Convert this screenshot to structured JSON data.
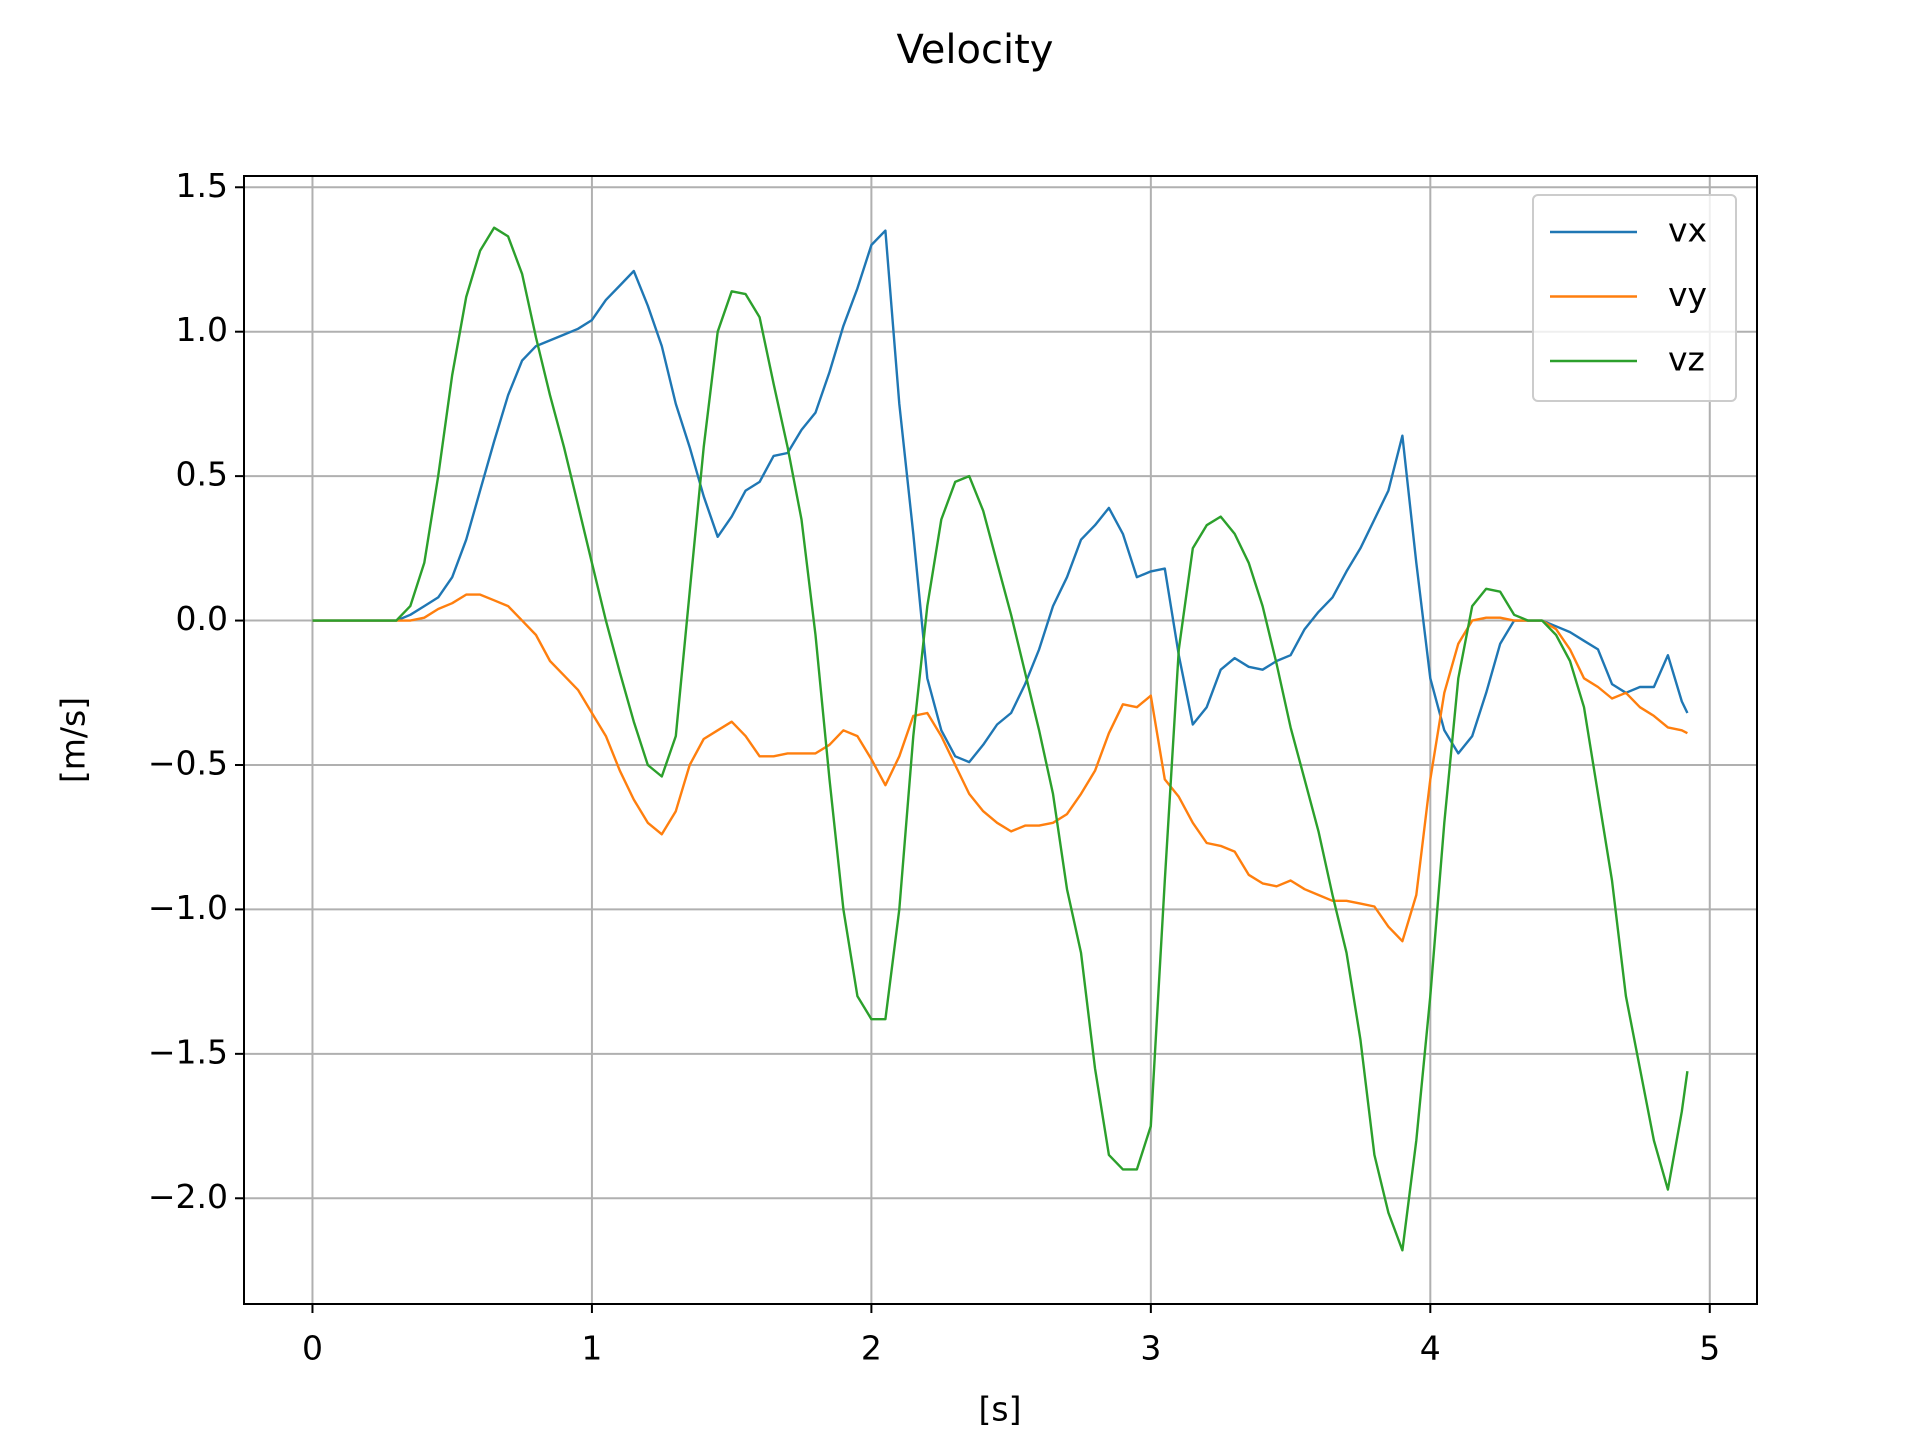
{
  "chart_data": {
    "type": "line",
    "title": "Velocity",
    "x_label": "[s]",
    "y_label": "[m/s]",
    "x": [
      0,
      0.05,
      0.1,
      0.15,
      0.2,
      0.25,
      0.3,
      0.35,
      0.4,
      0.45,
      0.5,
      0.55,
      0.6,
      0.65,
      0.7,
      0.75,
      0.8,
      0.85,
      0.9,
      0.95,
      1,
      1.05,
      1.1,
      1.15,
      1.2,
      1.25,
      1.3,
      1.35,
      1.4,
      1.45,
      1.5,
      1.55,
      1.6,
      1.65,
      1.7,
      1.75,
      1.8,
      1.85,
      1.9,
      1.95,
      2,
      2.05,
      2.1,
      2.15,
      2.2,
      2.25,
      2.3,
      2.35,
      2.4,
      2.45,
      2.5,
      2.55,
      2.6,
      2.65,
      2.7,
      2.75,
      2.8,
      2.85,
      2.9,
      2.95,
      3,
      3.05,
      3.1,
      3.15,
      3.2,
      3.25,
      3.3,
      3.35,
      3.4,
      3.45,
      3.5,
      3.55,
      3.6,
      3.65,
      3.7,
      3.75,
      3.8,
      3.85,
      3.9,
      3.95,
      4,
      4.05,
      4.1,
      4.15,
      4.2,
      4.25,
      4.3,
      4.35,
      4.4,
      4.45,
      4.5,
      4.55,
      4.6,
      4.65,
      4.7,
      4.75,
      4.8,
      4.85,
      4.9,
      4.92
    ],
    "series": [
      {
        "name": "vx",
        "color": "#1f77b4",
        "values": [
          0,
          0,
          0,
          0,
          0,
          0,
          0,
          0.02,
          0.05,
          0.08,
          0.15,
          0.28,
          0.45,
          0.62,
          0.78,
          0.9,
          0.95,
          0.97,
          0.99,
          1.01,
          1.04,
          1.11,
          1.16,
          1.21,
          1.09,
          0.95,
          0.75,
          0.6,
          0.43,
          0.29,
          0.36,
          0.45,
          0.48,
          0.57,
          0.58,
          0.66,
          0.72,
          0.86,
          1.02,
          1.15,
          1.3,
          1.35,
          0.75,
          0.3,
          -0.2,
          -0.38,
          -0.47,
          -0.49,
          -0.43,
          -0.36,
          -0.32,
          -0.22,
          -0.1,
          0.05,
          0.15,
          0.28,
          0.33,
          0.39,
          0.3,
          0.15,
          0.17,
          0.18,
          -0.12,
          -0.36,
          -0.3,
          -0.17,
          -0.13,
          -0.16,
          -0.17,
          -0.14,
          -0.12,
          -0.03,
          0.03,
          0.08,
          0.17,
          0.25,
          0.35,
          0.45,
          0.64,
          0.2,
          -0.2,
          -0.38,
          -0.46,
          -0.4,
          -0.25,
          -0.08,
          0,
          0,
          0,
          -0.02,
          -0.04,
          -0.07,
          -0.1,
          -0.22,
          -0.25,
          -0.23,
          -0.23,
          -0.12,
          -0.28,
          -0.32
        ]
      },
      {
        "name": "vy",
        "color": "#ff7f0e",
        "values": [
          0,
          0,
          0,
          0,
          0,
          0,
          0,
          0,
          0.01,
          0.04,
          0.06,
          0.09,
          0.09,
          0.07,
          0.05,
          0,
          -0.05,
          -0.14,
          -0.19,
          -0.24,
          -0.32,
          -0.4,
          -0.52,
          -0.62,
          -0.7,
          -0.74,
          -0.66,
          -0.5,
          -0.41,
          -0.38,
          -0.35,
          -0.4,
          -0.47,
          -0.47,
          -0.46,
          -0.46,
          -0.46,
          -0.43,
          -0.38,
          -0.4,
          -0.48,
          -0.57,
          -0.47,
          -0.33,
          -0.32,
          -0.4,
          -0.5,
          -0.6,
          -0.66,
          -0.7,
          -0.73,
          -0.71,
          -0.71,
          -0.7,
          -0.67,
          -0.6,
          -0.52,
          -0.39,
          -0.29,
          -0.3,
          -0.26,
          -0.55,
          -0.61,
          -0.7,
          -0.77,
          -0.78,
          -0.8,
          -0.88,
          -0.91,
          -0.92,
          -0.9,
          -0.93,
          -0.95,
          -0.97,
          -0.97,
          -0.98,
          -0.99,
          -1.06,
          -1.11,
          -0.95,
          -0.55,
          -0.25,
          -0.08,
          0,
          0.01,
          0.01,
          0,
          0,
          0,
          -0.03,
          -0.1,
          -0.2,
          -0.23,
          -0.27,
          -0.25,
          -0.3,
          -0.33,
          -0.37,
          -0.38,
          -0.39
        ]
      },
      {
        "name": "vz",
        "color": "#2ca02c",
        "values": [
          0,
          0,
          0,
          0,
          0,
          0,
          0,
          0.05,
          0.2,
          0.5,
          0.85,
          1.12,
          1.28,
          1.36,
          1.33,
          1.2,
          0.98,
          0.78,
          0.6,
          0.4,
          0.2,
          0,
          -0.18,
          -0.35,
          -0.5,
          -0.54,
          -0.4,
          0.1,
          0.6,
          1,
          1.14,
          1.13,
          1.05,
          0.82,
          0.6,
          0.35,
          -0.05,
          -0.55,
          -1,
          -1.3,
          -1.38,
          -1.38,
          -1,
          -0.4,
          0.05,
          0.35,
          0.48,
          0.5,
          0.38,
          0.2,
          0.02,
          -0.18,
          -0.38,
          -0.6,
          -0.93,
          -1.15,
          -1.55,
          -1.85,
          -1.9,
          -1.9,
          -1.75,
          -0.9,
          -0.1,
          0.25,
          0.33,
          0.36,
          0.3,
          0.2,
          0.05,
          -0.15,
          -0.37,
          -0.55,
          -0.73,
          -0.95,
          -1.15,
          -1.45,
          -1.85,
          -2.05,
          -2.18,
          -1.8,
          -1.3,
          -0.7,
          -0.2,
          0.05,
          0.11,
          0.1,
          0.02,
          0,
          0,
          -0.05,
          -0.14,
          -0.3,
          -0.6,
          -0.9,
          -1.3,
          -1.55,
          -1.8,
          -1.97,
          -1.7,
          -1.56
        ]
      }
    ],
    "xlim": [
      -0.245,
      5.169
    ],
    "ylim": [
      -2.366,
      1.539
    ],
    "xticks": [
      0,
      1,
      2,
      3,
      4,
      5
    ],
    "yticks": [
      {
        "value": -2,
        "label": "−2.0"
      },
      {
        "value": -1.5,
        "label": "−1.5"
      },
      {
        "value": -1,
        "label": "−1.0"
      },
      {
        "value": -0.5,
        "label": "−0.5"
      },
      {
        "value": 0,
        "label": "0.0"
      },
      {
        "value": 0.5,
        "label": "0.5"
      },
      {
        "value": 1,
        "label": "1.0"
      },
      {
        "value": 1.5,
        "label": "1.5"
      }
    ],
    "grid": true,
    "legend": "upper right"
  }
}
